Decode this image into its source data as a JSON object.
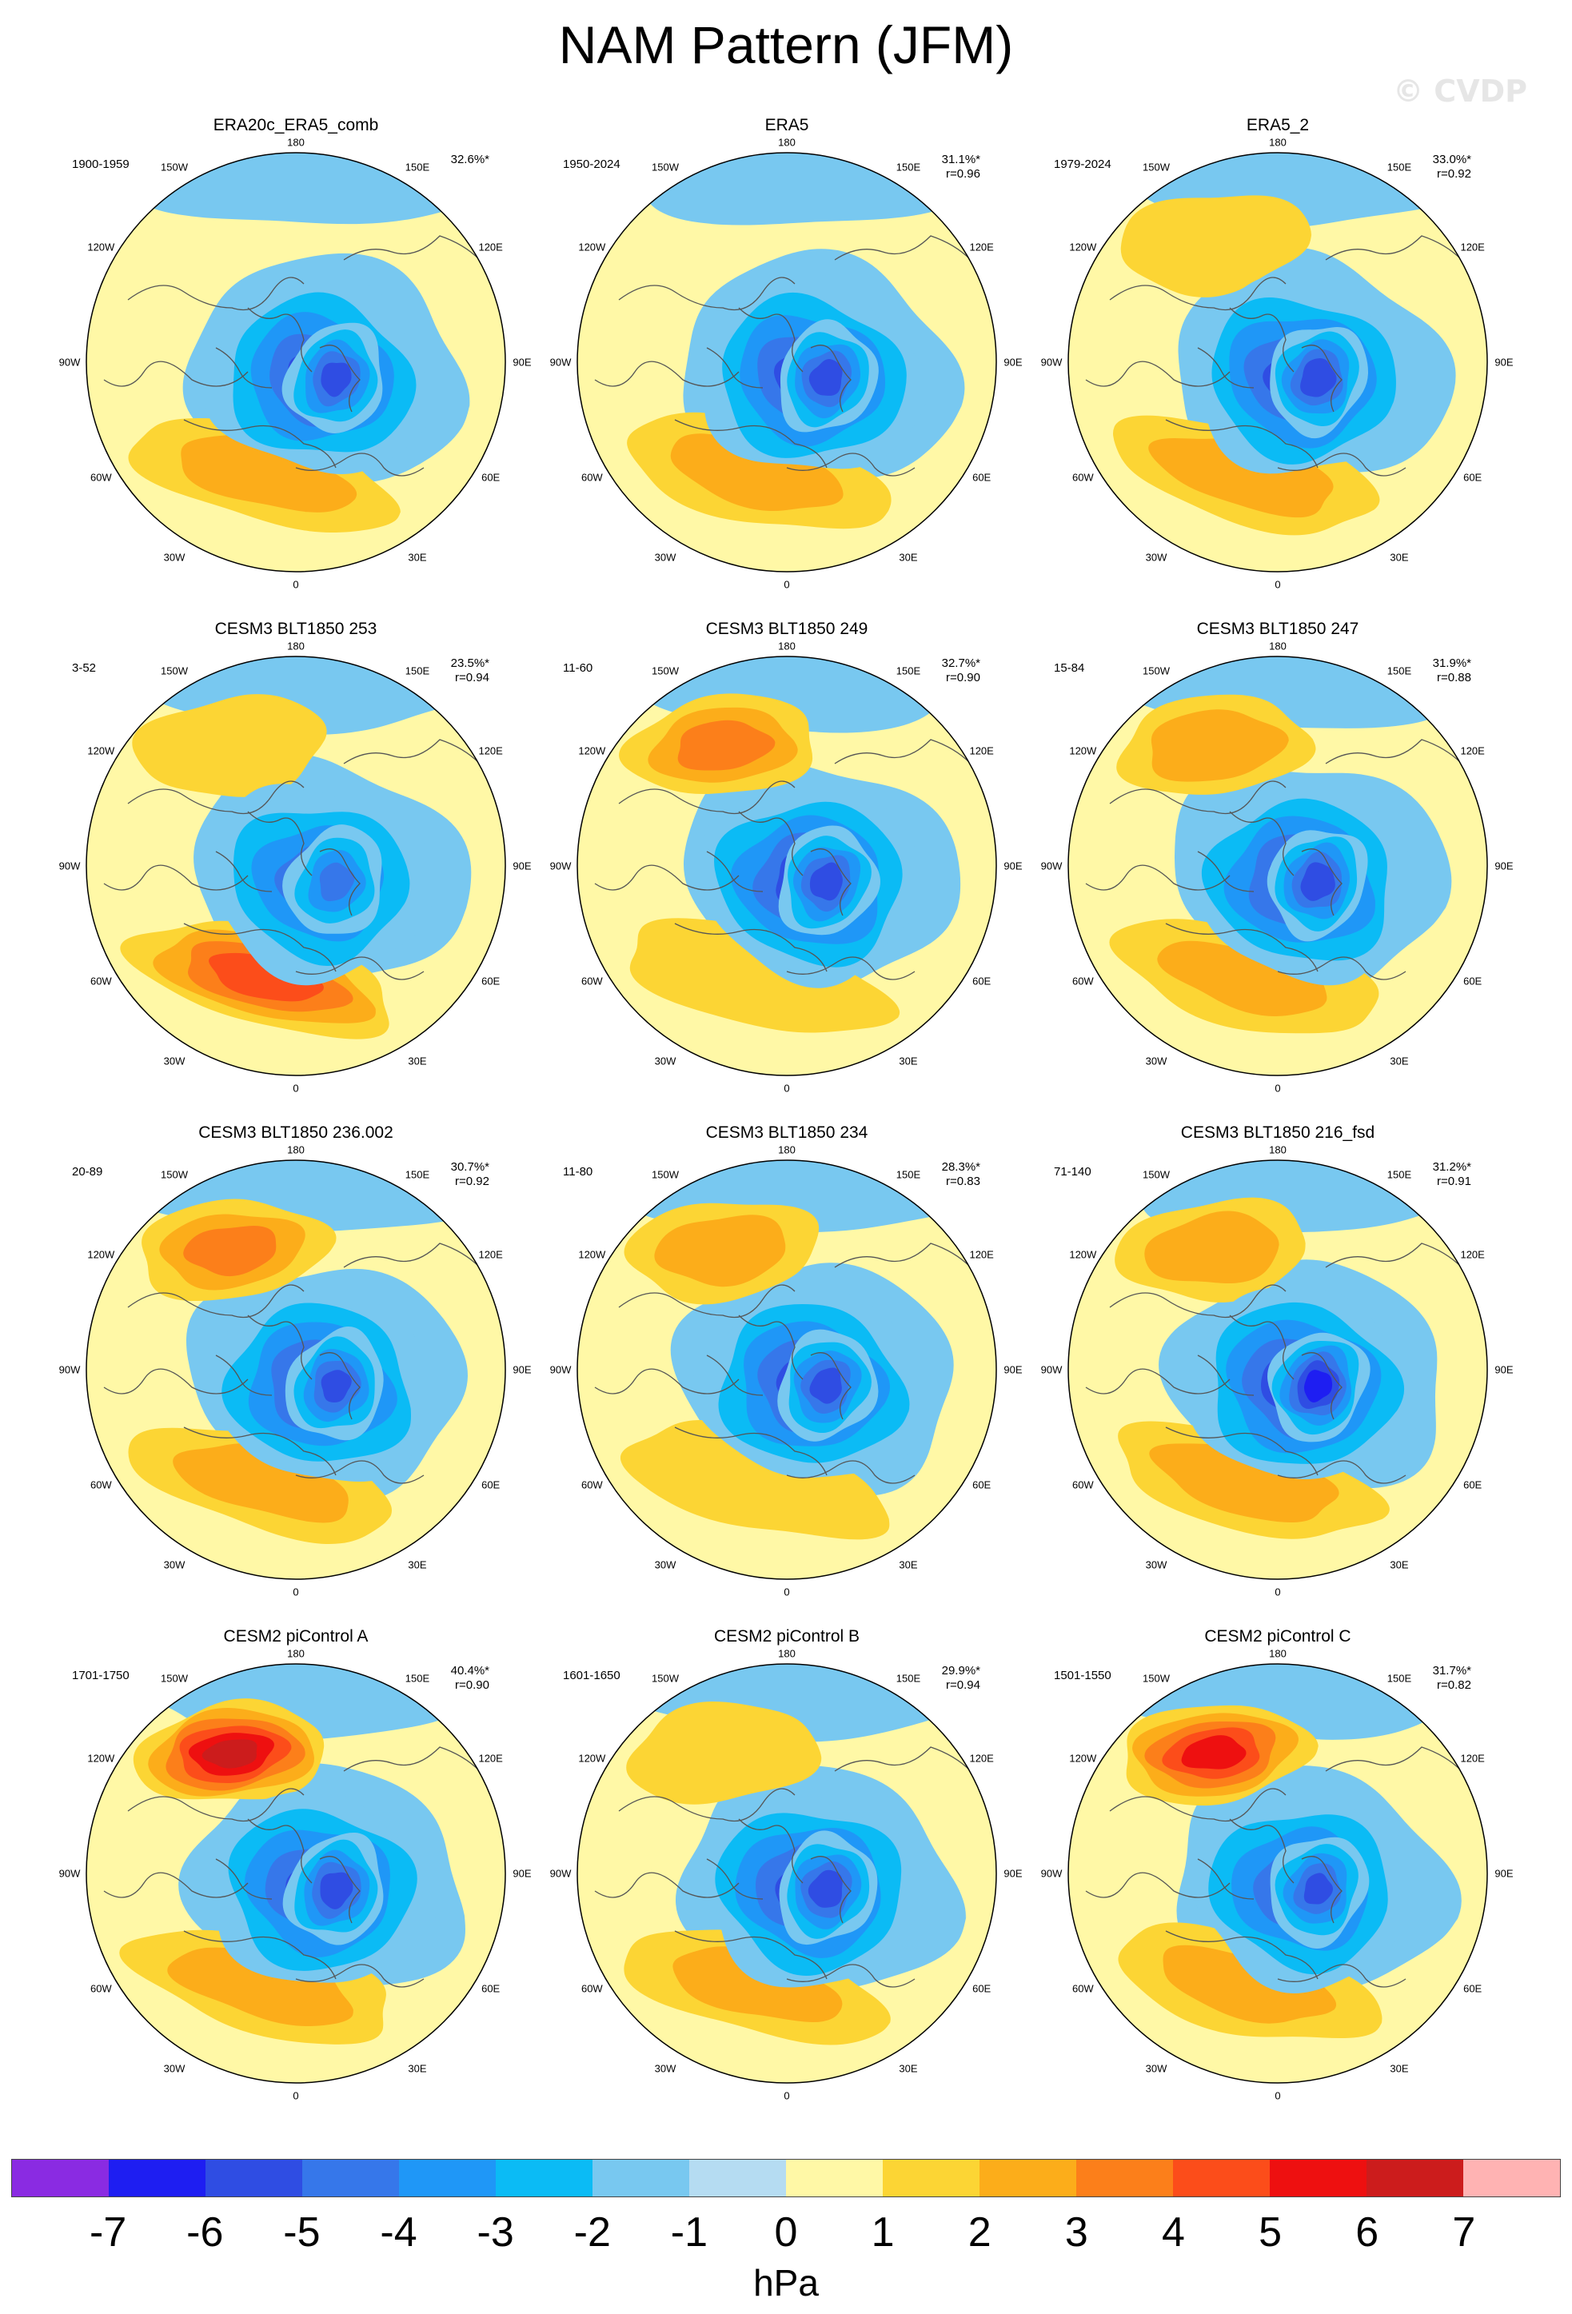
{
  "title": "NAM Pattern (JFM)",
  "watermark": "© CVDP",
  "longitude_labels": {
    "top": "180",
    "top_left": "150W",
    "top_right": "150E",
    "upper_left": "120W",
    "upper_right": "120E",
    "left": "90W",
    "right": "90E",
    "lower_left": "60W",
    "lower_right": "60E",
    "bottom_left": "30W",
    "bottom_right": "30E",
    "bottom": "0"
  },
  "panels": [
    {
      "title": "ERA20c_ERA5_comb",
      "period": "1900-1959",
      "pct": "32.6%*",
      "r": "",
      "blobs": {
        "pac_high": 0.9,
        "atl_high": 2.4,
        "low": -5.0,
        "arctic_low": -5.2
      }
    },
    {
      "title": "ERA5",
      "period": "1950-2024",
      "pct": "31.1%*",
      "r": "r=0.96",
      "blobs": {
        "pac_high": 0.8,
        "atl_high": 2.3,
        "low": -5.2,
        "arctic_low": -5.4
      }
    },
    {
      "title": "ERA5_2",
      "period": "1979-2024",
      "pct": "33.0%*",
      "r": "r=0.92",
      "blobs": {
        "pac_high": 1.2,
        "atl_high": 2.6,
        "low": -5.3,
        "arctic_low": -5.6
      }
    },
    {
      "title": "CESM3 BLT1850 253",
      "period": "3-52",
      "pct": "23.5%*",
      "r": "r=0.94",
      "blobs": {
        "pac_high": 1.1,
        "atl_high": 4.6,
        "low": -4.2,
        "arctic_low": -4.0
      }
    },
    {
      "title": "CESM3 BLT1850 249",
      "period": "11-60",
      "pct": "32.7%*",
      "r": "r=0.90",
      "blobs": {
        "pac_high": 3.4,
        "atl_high": 1.6,
        "low": -5.3,
        "arctic_low": -5.4
      }
    },
    {
      "title": "CESM3 BLT1850 247",
      "period": "15-84",
      "pct": "31.9%*",
      "r": "r=0.88",
      "blobs": {
        "pac_high": 2.9,
        "atl_high": 2.2,
        "low": -5.2,
        "arctic_low": -5.5
      }
    },
    {
      "title": "CESM3 BLT1850 236.002",
      "period": "20-89",
      "pct": "30.7%*",
      "r": "r=0.92",
      "blobs": {
        "pac_high": 3.3,
        "atl_high": 2.4,
        "low": -5.0,
        "arctic_low": -5.1
      }
    },
    {
      "title": "CESM3 BLT1850 234",
      "period": "11-80",
      "pct": "28.3%*",
      "r": "r=0.83",
      "blobs": {
        "pac_high": 2.6,
        "atl_high": 1.8,
        "low": -5.1,
        "arctic_low": -5.3
      }
    },
    {
      "title": "CESM3 BLT1850 216_fsd",
      "period": "71-140",
      "pct": "31.2%*",
      "r": "r=0.91",
      "blobs": {
        "pac_high": 2.8,
        "atl_high": 2.6,
        "low": -5.6,
        "arctic_low": -6.4
      }
    },
    {
      "title": "CESM2 piControl A",
      "period": "1701-1750",
      "pct": "40.4%*",
      "r": "r=0.90",
      "blobs": {
        "pac_high": 6.4,
        "atl_high": 2.6,
        "low": -5.1,
        "arctic_low": -5.4
      }
    },
    {
      "title": "CESM2 piControl B",
      "period": "1601-1650",
      "pct": "29.9%*",
      "r": "r=0.94",
      "blobs": {
        "pac_high": 1.8,
        "atl_high": 2.2,
        "low": -5.2,
        "arctic_low": -5.5
      }
    },
    {
      "title": "CESM2 piControl C",
      "period": "1501-1550",
      "pct": "31.7%*",
      "r": "r=0.82",
      "blobs": {
        "pac_high": 5.4,
        "atl_high": 2.3,
        "low": -4.6,
        "arctic_low": -5.0
      }
    }
  ],
  "colorbar": {
    "colors": [
      "#8a2be2",
      "#1e1ef2",
      "#2f4de3",
      "#3677ea",
      "#1f97f7",
      "#0bbbf5",
      "#78c8f0",
      "#b5dcf2",
      "#fff8a6",
      "#fcd534",
      "#fcad1a",
      "#fc7f1a",
      "#fc4d1a",
      "#ee1010",
      "#cc1c1c",
      "#ffb3b3"
    ],
    "ticks": [
      "-7",
      "-6",
      "-5",
      "-4",
      "-3",
      "-2",
      "-1",
      "0",
      "1",
      "2",
      "3",
      "4",
      "5",
      "6",
      "7"
    ],
    "unit": "hPa"
  }
}
